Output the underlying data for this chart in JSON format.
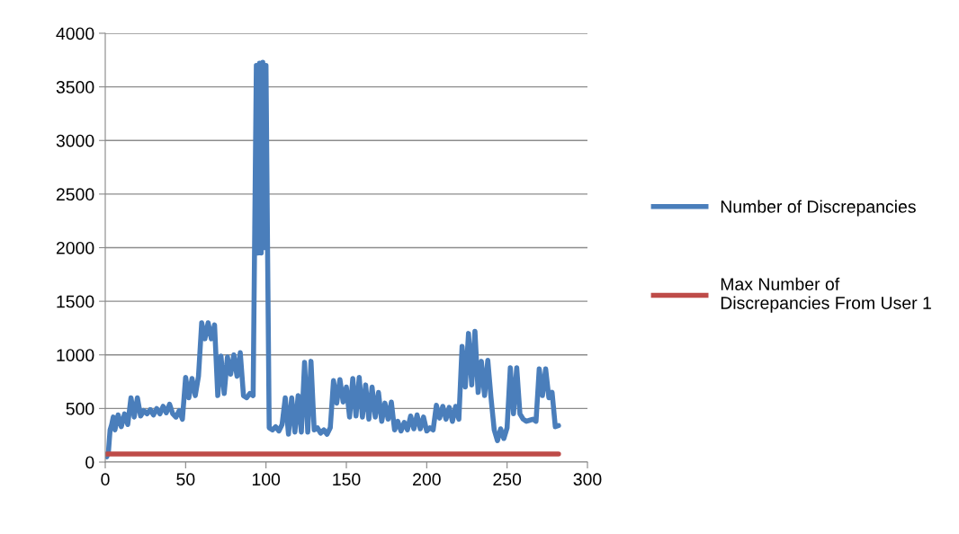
{
  "chart_data": {
    "type": "line",
    "xlim": [
      0,
      300
    ],
    "xticks": [
      0,
      50,
      100,
      150,
      200,
      250,
      300
    ],
    "ylim": [
      0,
      4000
    ],
    "yticks": [
      0,
      500,
      1000,
      1500,
      2000,
      2500,
      3000,
      3500,
      4000
    ],
    "grid": "y",
    "legend": "right",
    "marker": "none",
    "line_style": "solid",
    "series": [
      {
        "name": "Number of Discrepancies",
        "color": "#4a7ebb",
        "x": [
          1,
          2,
          3,
          4,
          5,
          6,
          8,
          10,
          12,
          14,
          16,
          18,
          20,
          22,
          24,
          26,
          28,
          30,
          32,
          34,
          36,
          38,
          40,
          42,
          44,
          46,
          48,
          50,
          52,
          54,
          56,
          58,
          60,
          62,
          64,
          66,
          68,
          70,
          72,
          74,
          76,
          78,
          80,
          82,
          84,
          86,
          88,
          90,
          92,
          94,
          95,
          96,
          97,
          98,
          99,
          100,
          101,
          102,
          104,
          106,
          108,
          110,
          112,
          114,
          116,
          118,
          120,
          122,
          124,
          126,
          128,
          130,
          132,
          134,
          136,
          138,
          140,
          142,
          144,
          146,
          148,
          150,
          152,
          154,
          156,
          158,
          160,
          162,
          164,
          166,
          168,
          170,
          172,
          174,
          176,
          178,
          180,
          182,
          184,
          186,
          188,
          190,
          192,
          194,
          196,
          198,
          200,
          202,
          204,
          206,
          208,
          210,
          212,
          214,
          216,
          218,
          220,
          222,
          224,
          226,
          228,
          230,
          232,
          234,
          236,
          238,
          240,
          242,
          244,
          246,
          248,
          250,
          252,
          254,
          256,
          258,
          260,
          262,
          264,
          266,
          268,
          270,
          272,
          274,
          276,
          278,
          280,
          282
        ],
        "values": [
          50,
          100,
          300,
          350,
          420,
          300,
          440,
          330,
          450,
          350,
          600,
          420,
          600,
          430,
          480,
          450,
          490,
          440,
          500,
          450,
          520,
          460,
          540,
          450,
          420,
          480,
          400,
          790,
          600,
          780,
          620,
          800,
          1300,
          1150,
          1300,
          1150,
          1280,
          620,
          990,
          640,
          980,
          820,
          1000,
          800,
          1020,
          620,
          600,
          640,
          620,
          3700,
          1950,
          3720,
          1950,
          3730,
          2000,
          3700,
          1950,
          320,
          300,
          330,
          290,
          350,
          600,
          260,
          600,
          280,
          620,
          280,
          930,
          280,
          940,
          300,
          320,
          270,
          300,
          260,
          320,
          760,
          550,
          770,
          560,
          700,
          420,
          780,
          430,
          790,
          420,
          720,
          400,
          700,
          420,
          650,
          380,
          550,
          400,
          560,
          300,
          380,
          290,
          370,
          300,
          430,
          310,
          440,
          310,
          420,
          290,
          320,
          300,
          530,
          410,
          520,
          400,
          510,
          380,
          520,
          400,
          1080,
          700,
          1200,
          720,
          1220,
          650,
          940,
          620,
          950,
          600,
          300,
          200,
          310,
          220,
          320,
          880,
          450,
          880,
          450,
          400,
          380,
          390,
          400,
          380,
          870,
          620,
          870,
          600,
          650,
          330,
          340
        ]
      },
      {
        "name": "Max Number of Discrepancies From User 1",
        "color": "#be4b48",
        "x": [
          1,
          282
        ],
        "values": [
          75,
          75
        ]
      }
    ]
  }
}
